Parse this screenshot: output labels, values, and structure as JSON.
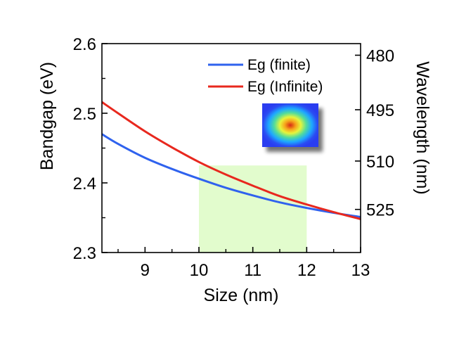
{
  "chart_data": {
    "type": "line",
    "title": "",
    "xlabel": "Size (nm)",
    "ylabel": "Bandgap (eV)",
    "y2label": "Wavelength (nm)",
    "xlim": [
      8.2,
      13
    ],
    "ylim": [
      2.3,
      2.6
    ],
    "xticks": [
      9,
      10,
      11,
      12,
      13
    ],
    "xtick_labels": [
      "9",
      "10",
      "11",
      "12",
      "13"
    ],
    "yticks": [
      2.3,
      2.4,
      2.5,
      2.6
    ],
    "ytick_labels": [
      "2.3",
      "2.4",
      "2.5",
      "2.6"
    ],
    "y2ticks": [
      480,
      495,
      510,
      525
    ],
    "y2tick_labels": [
      "480",
      "495",
      "510",
      "525"
    ],
    "y2_scale": "reciprocal (wavelength = 1240 / bandgap)",
    "grid": false,
    "legend_position": "top-right",
    "highlight_region": {
      "x_from": 10,
      "x_to": 12,
      "y_from": 2.3,
      "y_to": 2.425,
      "color": "#e2fccd"
    },
    "inset": "colored spot image (red-yellow center fading to blue)",
    "series": [
      {
        "name": "Eg (finite)",
        "color": "#2f62ee",
        "x": [
          8.2,
          8.5,
          9.0,
          9.5,
          10.0,
          10.5,
          11.0,
          11.5,
          12.0,
          12.5,
          13.0
        ],
        "values": [
          2.47,
          2.456,
          2.436,
          2.42,
          2.406,
          2.393,
          2.382,
          2.372,
          2.364,
          2.357,
          2.351
        ]
      },
      {
        "name": "Eg (Infinite)",
        "color": "#e8281e",
        "x": [
          8.2,
          8.5,
          9.0,
          9.5,
          10.0,
          10.5,
          11.0,
          11.5,
          12.0,
          12.5,
          13.0
        ],
        "values": [
          2.516,
          2.5,
          2.474,
          2.451,
          2.43,
          2.412,
          2.396,
          2.381,
          2.369,
          2.358,
          2.348
        ]
      }
    ]
  }
}
